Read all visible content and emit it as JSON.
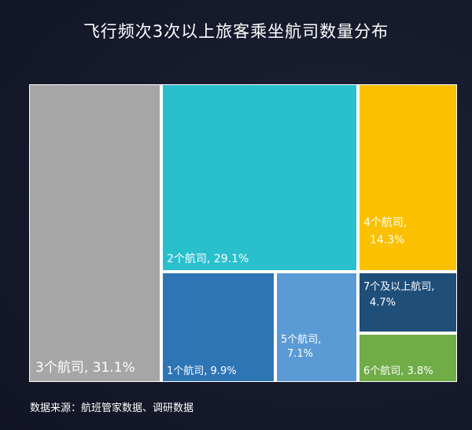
{
  "title": "飞行频次3次以上旅客乘坐航司数量分布",
  "source": "数据来源：航班管家数据、调研数据",
  "chart_data": {
    "type": "treemap",
    "title": "飞行频次3次以上旅客乘坐航司数量分布",
    "items": [
      {
        "name": "3个航司",
        "value": 31.1,
        "label": "3个航司, 31.1%",
        "color": "#a6a6a6"
      },
      {
        "name": "2个航司",
        "value": 29.1,
        "label": "2个航司, 29.1%",
        "color": "#29bfcd"
      },
      {
        "name": "4个航司",
        "value": 14.3,
        "label": "4个航司,|14.3%",
        "color": "#fbc000"
      },
      {
        "name": "1个航司",
        "value": 9.9,
        "label": "1个航司, 9.9%",
        "color": "#2e75b6"
      },
      {
        "name": "5个航司",
        "value": 7.1,
        "label": "5个航司,|7.1%",
        "color": "#5b9bd5"
      },
      {
        "name": "7个及以上航司",
        "value": 4.7,
        "label": "7个及以上航司,|4.7%",
        "color": "#1f4e79"
      },
      {
        "name": "6个航司",
        "value": 3.8,
        "label": "6个航司, 3.8%",
        "color": "#70ad47"
      }
    ]
  }
}
